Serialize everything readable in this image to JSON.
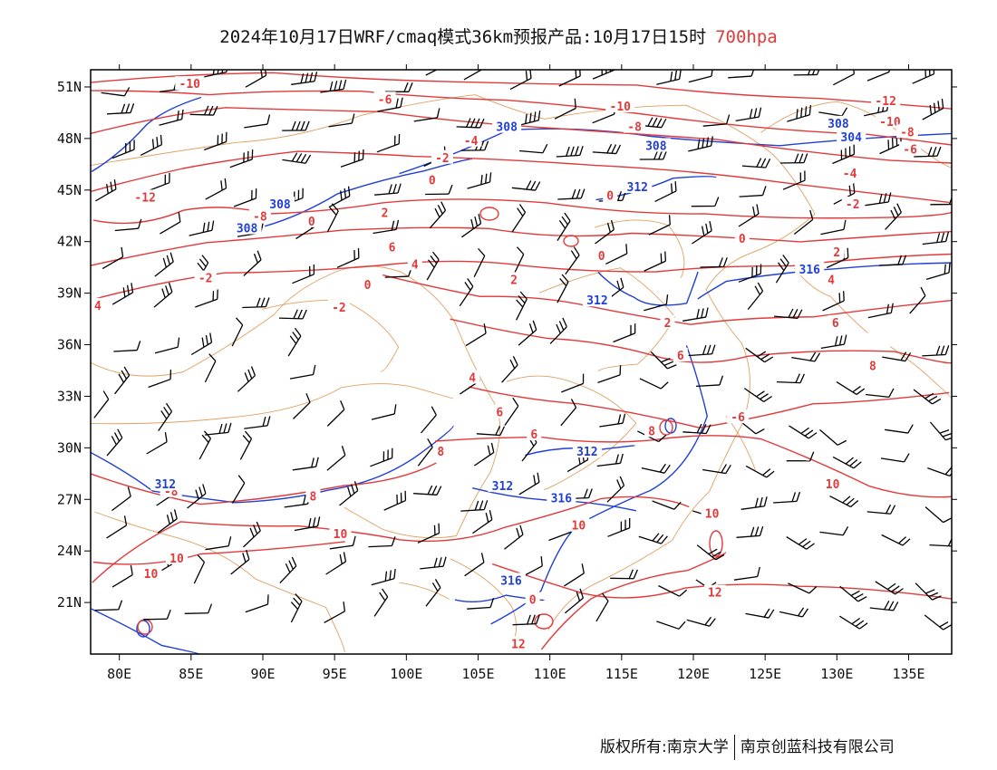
{
  "title": {
    "main": "2024年10月17日WRF/cmaq模式36km预报产品:10月17日15时",
    "level": "700hpa"
  },
  "map": {
    "lon_range": [
      78,
      138
    ],
    "lat_range": [
      18,
      52
    ],
    "lon_ticks": [
      "80E",
      "85E",
      "90E",
      "95E",
      "100E",
      "105E",
      "110E",
      "115E",
      "120E",
      "125E",
      "130E",
      "135E"
    ],
    "lat_ticks": [
      "51N",
      "48N",
      "45N",
      "42N",
      "39N",
      "36N",
      "33N",
      "30N",
      "27N",
      "24N",
      "21N"
    ],
    "colors": {
      "temperature": "#e23a3a",
      "height": "#1f3fd6",
      "boundary": "#e0a060",
      "wind_barb": "#000000"
    }
  },
  "temperature_labels": [
    {
      "text": "-10",
      "lon": 84.9,
      "lat": 51.2
    },
    {
      "text": "-6",
      "lon": 98.5,
      "lat": 50.3
    },
    {
      "text": "-4",
      "lon": 104.5,
      "lat": 47.9
    },
    {
      "text": "-2",
      "lon": 102.5,
      "lat": 46.9
    },
    {
      "text": "0",
      "lon": 101.8,
      "lat": 45.6
    },
    {
      "text": "-12",
      "lon": 81.8,
      "lat": 44.6
    },
    {
      "text": "-8",
      "lon": 89.8,
      "lat": 43.5
    },
    {
      "text": "0",
      "lon": 93.4,
      "lat": 43.2
    },
    {
      "text": "2",
      "lon": 98.5,
      "lat": 43.7
    },
    {
      "text": "-2",
      "lon": 86.0,
      "lat": 39.9
    },
    {
      "text": "4",
      "lon": 78.5,
      "lat": 38.3
    },
    {
      "text": "4",
      "lon": 100.6,
      "lat": 40.7
    },
    {
      "text": "6",
      "lon": 99.0,
      "lat": 41.7
    },
    {
      "text": "0",
      "lon": 97.3,
      "lat": 39.5
    },
    {
      "text": "-2",
      "lon": 95.3,
      "lat": 38.2
    },
    {
      "text": "2",
      "lon": 107.5,
      "lat": 39.8
    },
    {
      "text": "0",
      "lon": 114.2,
      "lat": 44.7
    },
    {
      "text": "0",
      "lon": 113.6,
      "lat": 41.2
    },
    {
      "text": "2",
      "lon": 118.2,
      "lat": 37.3
    },
    {
      "text": "6",
      "lon": 119.1,
      "lat": 35.4
    },
    {
      "text": "4",
      "lon": 104.6,
      "lat": 34.1
    },
    {
      "text": "6",
      "lon": 106.5,
      "lat": 32.1
    },
    {
      "text": "6",
      "lon": 108.9,
      "lat": 30.8
    },
    {
      "text": "8",
      "lon": 117.1,
      "lat": 31.0
    },
    {
      "text": "-6",
      "lon": 123.1,
      "lat": 31.8
    },
    {
      "text": "8",
      "lon": 102.4,
      "lat": 29.8
    },
    {
      "text": "-8",
      "lon": 83.6,
      "lat": 27.5
    },
    {
      "text": "8",
      "lon": 93.5,
      "lat": 27.2
    },
    {
      "text": "10",
      "lon": 95.4,
      "lat": 25.0
    },
    {
      "text": "10",
      "lon": 84.0,
      "lat": 23.6
    },
    {
      "text": "10",
      "lon": 112.0,
      "lat": 25.5
    },
    {
      "text": "10",
      "lon": 121.3,
      "lat": 26.2
    },
    {
      "text": "10",
      "lon": 82.2,
      "lat": 22.7
    },
    {
      "text": "12",
      "lon": 121.5,
      "lat": 21.6
    },
    {
      "text": "12",
      "lon": 107.8,
      "lat": 18.6
    },
    {
      "text": "0",
      "lon": 108.8,
      "lat": 21.2
    },
    {
      "text": "-10",
      "lon": 114.9,
      "lat": 49.9
    },
    {
      "text": "-8",
      "lon": 115.9,
      "lat": 48.7
    },
    {
      "text": "-12",
      "lon": 133.4,
      "lat": 50.2
    },
    {
      "text": "-10",
      "lon": 133.7,
      "lat": 49.0
    },
    {
      "text": "-8",
      "lon": 134.9,
      "lat": 48.4
    },
    {
      "text": "-6",
      "lon": 135.1,
      "lat": 47.4
    },
    {
      "text": "-4",
      "lon": 130.9,
      "lat": 46.0
    },
    {
      "text": "-2",
      "lon": 131.1,
      "lat": 44.2
    },
    {
      "text": "0",
      "lon": 123.4,
      "lat": 42.2
    },
    {
      "text": "2",
      "lon": 130.0,
      "lat": 41.4
    },
    {
      "text": "4",
      "lon": 129.6,
      "lat": 39.8
    },
    {
      "text": "6",
      "lon": 129.9,
      "lat": 37.3
    },
    {
      "text": "8",
      "lon": 132.5,
      "lat": 34.8
    },
    {
      "text": "10",
      "lon": 129.7,
      "lat": 27.9
    }
  ],
  "height_labels": [
    {
      "text": "308",
      "lon": 107.0,
      "lat": 48.7
    },
    {
      "text": "308",
      "lon": 117.4,
      "lat": 47.6
    },
    {
      "text": "312",
      "lon": 116.1,
      "lat": 45.2
    },
    {
      "text": "308",
      "lon": 91.2,
      "lat": 44.2
    },
    {
      "text": "308",
      "lon": 88.9,
      "lat": 42.8
    },
    {
      "text": "316",
      "lon": 128.1,
      "lat": 40.4
    },
    {
      "text": "312",
      "lon": 113.3,
      "lat": 38.6
    },
    {
      "text": "312",
      "lon": 112.6,
      "lat": 29.8
    },
    {
      "text": "312",
      "lon": 83.2,
      "lat": 27.9
    },
    {
      "text": "312",
      "lon": 106.7,
      "lat": 27.8
    },
    {
      "text": "316",
      "lon": 110.8,
      "lat": 27.1
    },
    {
      "text": "316",
      "lon": 107.3,
      "lat": 22.3
    },
    {
      "text": "308",
      "lon": 130.1,
      "lat": 48.9
    },
    {
      "text": "304",
      "lon": 131.0,
      "lat": 48.1
    }
  ],
  "footer": {
    "left": "版权所有:南京大学",
    "right": "南京创蓝科技有限公司"
  }
}
